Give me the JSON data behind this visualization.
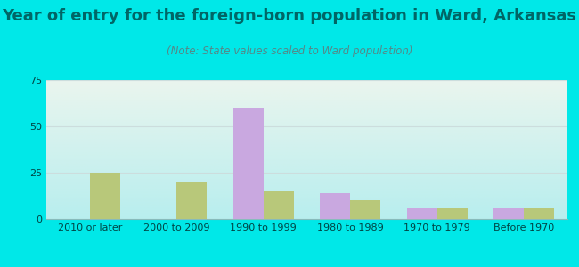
{
  "title": "Year of entry for the foreign-born population in Ward, Arkansas",
  "subtitle": "(Note: State values scaled to Ward population)",
  "categories": [
    "2010 or later",
    "2000 to 2009",
    "1990 to 1999",
    "1980 to 1989",
    "1970 to 1979",
    "Before 1970"
  ],
  "ward_values": [
    0,
    0,
    60,
    14,
    6,
    6
  ],
  "arkansas_values": [
    25,
    20,
    15,
    10,
    6,
    6
  ],
  "ward_color": "#c9a8e0",
  "arkansas_color": "#b8c87a",
  "background_outer": "#00e8e8",
  "bg_top_color": "#eaf5ee",
  "bg_bottom_color": "#b8eeee",
  "ylim": [
    0,
    75
  ],
  "yticks": [
    0,
    25,
    50,
    75
  ],
  "bar_width": 0.35,
  "title_fontsize": 13,
  "subtitle_fontsize": 8.5,
  "tick_fontsize": 8,
  "legend_fontsize": 9,
  "title_color": "#006666",
  "subtitle_color": "#558888",
  "tick_color": "#004444",
  "grid_color": "#ccdddd"
}
